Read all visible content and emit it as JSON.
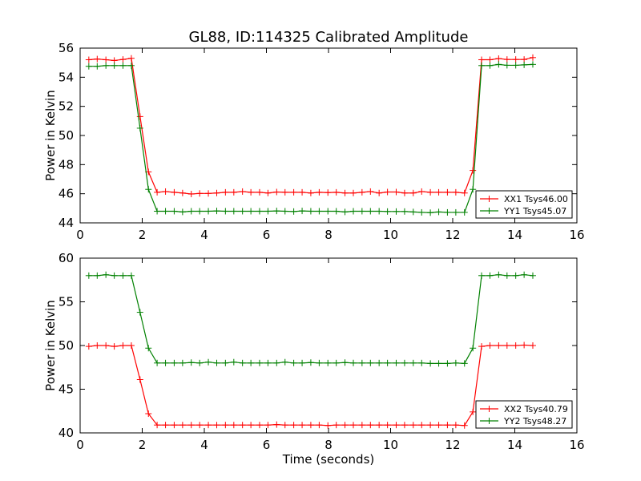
{
  "figure": {
    "title": "GL88, ID:114325 Calibrated Amplitude"
  },
  "chart_data": [
    {
      "type": "line",
      "title": "GL88, ID:114325 Calibrated Amplitude",
      "xlabel": "",
      "ylabel": "Power in Kelvin",
      "xlim": [
        0,
        16
      ],
      "ylim": [
        44,
        56
      ],
      "x_ticks": [
        0,
        2,
        4,
        6,
        8,
        10,
        12,
        14,
        16
      ],
      "y_ticks": [
        44,
        46,
        48,
        50,
        52,
        54,
        56
      ],
      "grid": false,
      "legend": "lower-right",
      "x": [
        0.28,
        0.55,
        0.83,
        1.1,
        1.38,
        1.65,
        1.93,
        2.2,
        2.48,
        2.75,
        3.03,
        3.3,
        3.58,
        3.85,
        4.13,
        4.4,
        4.68,
        4.95,
        5.23,
        5.5,
        5.78,
        6.05,
        6.33,
        6.6,
        6.88,
        7.15,
        7.43,
        7.7,
        7.98,
        8.25,
        8.53,
        8.8,
        9.08,
        9.35,
        9.63,
        9.9,
        10.18,
        10.45,
        10.73,
        11.0,
        11.28,
        11.55,
        11.83,
        12.1,
        12.38,
        12.65,
        12.93,
        13.2,
        13.48,
        13.75,
        14.03,
        14.3,
        14.58
      ],
      "series": [
        {
          "name": "XX1 Tsys46.00",
          "color": "#ff0000",
          "values": [
            55.2,
            55.25,
            55.2,
            55.15,
            55.22,
            55.3,
            51.3,
            47.5,
            46.1,
            46.15,
            46.1,
            46.05,
            45.98,
            46.02,
            46.02,
            46.05,
            46.1,
            46.1,
            46.15,
            46.1,
            46.1,
            46.05,
            46.12,
            46.1,
            46.1,
            46.1,
            46.05,
            46.1,
            46.08,
            46.1,
            46.05,
            46.05,
            46.1,
            46.15,
            46.05,
            46.12,
            46.12,
            46.05,
            46.05,
            46.15,
            46.1,
            46.1,
            46.1,
            46.1,
            46.05,
            47.6,
            55.2,
            55.2,
            55.28,
            55.22,
            55.22,
            55.22,
            55.35
          ]
        },
        {
          "name": "YY1 Tsys45.07",
          "color": "#008000",
          "values": [
            54.75,
            54.75,
            54.8,
            54.8,
            54.8,
            54.8,
            50.5,
            46.3,
            44.8,
            44.8,
            44.8,
            44.75,
            44.8,
            44.8,
            44.8,
            44.82,
            44.8,
            44.8,
            44.8,
            44.8,
            44.8,
            44.8,
            44.82,
            44.8,
            44.78,
            44.82,
            44.8,
            44.8,
            44.8,
            44.8,
            44.75,
            44.8,
            44.8,
            44.8,
            44.8,
            44.78,
            44.78,
            44.78,
            44.75,
            44.72,
            44.7,
            44.75,
            44.72,
            44.72,
            44.72,
            46.3,
            54.8,
            54.8,
            54.88,
            54.82,
            54.82,
            54.85,
            54.88
          ]
        }
      ]
    },
    {
      "type": "line",
      "title": "",
      "xlabel": "Time (seconds)",
      "ylabel": "Power in Kelvin",
      "xlim": [
        0,
        16
      ],
      "ylim": [
        40,
        60
      ],
      "x_ticks": [
        0,
        2,
        4,
        6,
        8,
        10,
        12,
        14,
        16
      ],
      "y_ticks": [
        40,
        45,
        50,
        55,
        60
      ],
      "grid": false,
      "legend": "lower-right",
      "x": [
        0.28,
        0.55,
        0.83,
        1.1,
        1.38,
        1.65,
        1.93,
        2.2,
        2.48,
        2.75,
        3.03,
        3.3,
        3.58,
        3.85,
        4.13,
        4.4,
        4.68,
        4.95,
        5.23,
        5.5,
        5.78,
        6.05,
        6.33,
        6.6,
        6.88,
        7.15,
        7.43,
        7.7,
        7.98,
        8.25,
        8.53,
        8.8,
        9.08,
        9.35,
        9.63,
        9.9,
        10.18,
        10.45,
        10.73,
        11.0,
        11.28,
        11.55,
        11.83,
        12.1,
        12.38,
        12.65,
        12.93,
        13.2,
        13.48,
        13.75,
        14.03,
        14.3,
        14.58
      ],
      "series": [
        {
          "name": "XX2 Tsys40.79",
          "color": "#ff0000",
          "values": [
            49.9,
            50.0,
            50.0,
            49.9,
            50.0,
            50.0,
            46.1,
            42.2,
            40.9,
            40.9,
            40.9,
            40.9,
            40.9,
            40.9,
            40.9,
            40.9,
            40.9,
            40.9,
            40.9,
            40.9,
            40.9,
            40.9,
            40.95,
            40.9,
            40.9,
            40.9,
            40.9,
            40.9,
            40.85,
            40.9,
            40.9,
            40.9,
            40.9,
            40.9,
            40.9,
            40.9,
            40.9,
            40.9,
            40.9,
            40.9,
            40.9,
            40.9,
            40.9,
            40.9,
            40.85,
            42.4,
            49.9,
            50.0,
            50.0,
            50.0,
            50.0,
            50.05,
            50.0
          ]
        },
        {
          "name": "YY2 Tsys48.27",
          "color": "#008000",
          "values": [
            58.0,
            58.0,
            58.1,
            58.0,
            58.0,
            58.0,
            53.8,
            49.7,
            48.0,
            48.0,
            48.0,
            48.0,
            48.05,
            48.0,
            48.1,
            48.0,
            48.0,
            48.1,
            48.0,
            48.0,
            48.0,
            48.0,
            48.0,
            48.1,
            48.0,
            48.0,
            48.05,
            48.0,
            48.0,
            48.0,
            48.05,
            48.0,
            48.0,
            48.0,
            48.0,
            48.0,
            48.0,
            48.0,
            48.0,
            48.0,
            47.95,
            47.95,
            47.95,
            48.0,
            47.95,
            49.7,
            58.0,
            58.0,
            58.1,
            58.0,
            58.0,
            58.1,
            58.0
          ]
        }
      ]
    }
  ]
}
